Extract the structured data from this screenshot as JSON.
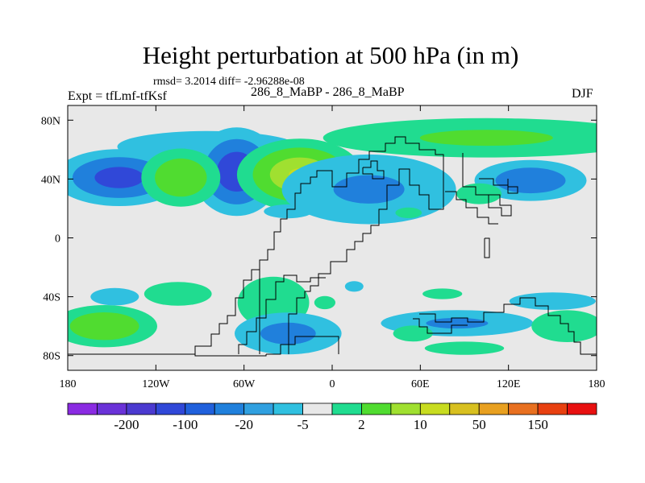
{
  "chart_data": {
    "type": "heatmap",
    "title": "Height perturbation at 500 hPa (in m)",
    "subtitle": "rmsd= 3.2014 diff= -2.96288e-08",
    "left_label": "Expt = tfLmf-tfKsf",
    "center_label": "286_8_MaBP - 286_8_MaBP",
    "right_label": "DJF",
    "xlim": [
      -180,
      180
    ],
    "ylim": [
      -90,
      90
    ],
    "x_ticks": [
      {
        "value": -180,
        "label": "180"
      },
      {
        "value": -120,
        "label": "120W"
      },
      {
        "value": -60,
        "label": "60W"
      },
      {
        "value": 0,
        "label": "0"
      },
      {
        "value": 60,
        "label": "60E"
      },
      {
        "value": 120,
        "label": "120E"
      },
      {
        "value": 180,
        "label": "180"
      }
    ],
    "y_ticks": [
      {
        "value": 80,
        "label": "80N"
      },
      {
        "value": 40,
        "label": "40N"
      },
      {
        "value": 0,
        "label": "0"
      },
      {
        "value": -40,
        "label": "40S"
      },
      {
        "value": -80,
        "label": "80S"
      }
    ],
    "colorbar": {
      "colors": [
        "#8a2be2",
        "#6a32d8",
        "#4b3ad0",
        "#3048d8",
        "#2060dc",
        "#2080dc",
        "#30a0e0",
        "#30c0e0",
        "#e8e8e8",
        "#20dc90",
        "#50dc30",
        "#a0e030",
        "#c8dc20",
        "#d8c020",
        "#e8a020",
        "#e87020",
        "#e84010",
        "#e81010"
      ],
      "labels": [
        {
          "after": 1,
          "text": "-200"
        },
        {
          "after": 3,
          "text": "-100"
        },
        {
          "after": 5,
          "text": "-20"
        },
        {
          "after": 7,
          "text": "-5"
        },
        {
          "after": 9,
          "text": "2"
        },
        {
          "after": 11,
          "text": "10"
        },
        {
          "after": 13,
          "text": "50"
        },
        {
          "after": 15,
          "text": "150"
        }
      ]
    },
    "anomalies": [
      {
        "lon": -145,
        "lat": 41,
        "sx": 23,
        "sy": 10,
        "amp": -13
      },
      {
        "lon": -85,
        "lat": 62,
        "sx": 52,
        "sy": 9,
        "amp": -4
      },
      {
        "lon": -65,
        "lat": 45,
        "sx": 15,
        "sy": 15,
        "amp": -15
      },
      {
        "lon": -103,
        "lat": 41,
        "sx": 15,
        "sy": 11,
        "amp": 10
      },
      {
        "lon": -22,
        "lat": 43,
        "sx": 21,
        "sy": 12,
        "amp": 16
      },
      {
        "lon": 25,
        "lat": 33,
        "sx": 40,
        "sy": 16,
        "amp": -6
      },
      {
        "lon": 105,
        "lat": 68,
        "sx": 75,
        "sy": 9,
        "amp": 6
      },
      {
        "lon": 135,
        "lat": 39,
        "sx": 22,
        "sy": 8,
        "amp": -9
      },
      {
        "lon": 100,
        "lat": 30,
        "sx": 13,
        "sy": 6,
        "amp": 4
      },
      {
        "lon": 52,
        "lat": 17,
        "sx": 10,
        "sy": 4,
        "amp": 3
      },
      {
        "lon": -30,
        "lat": 18,
        "sx": 14,
        "sy": 4,
        "amp": -4
      },
      {
        "lon": -155,
        "lat": -60,
        "sx": 20,
        "sy": 8,
        "amp": 10
      },
      {
        "lon": -105,
        "lat": -38,
        "sx": 17,
        "sy": 6,
        "amp": 5
      },
      {
        "lon": -148,
        "lat": -40,
        "sx": 14,
        "sy": 5,
        "amp": -4
      },
      {
        "lon": -40,
        "lat": -44,
        "sx": 18,
        "sy": 13,
        "amp": 5
      },
      {
        "lon": -5,
        "lat": -44,
        "sx": 8,
        "sy": 5,
        "amp": 3
      },
      {
        "lon": -30,
        "lat": -65,
        "sx": 23,
        "sy": 9,
        "amp": -7
      },
      {
        "lon": 15,
        "lat": -33,
        "sx": 7,
        "sy": 4,
        "amp": -3
      },
      {
        "lon": 75,
        "lat": -38,
        "sx": 15,
        "sy": 4,
        "amp": 3
      },
      {
        "lon": 150,
        "lat": -43,
        "sx": 25,
        "sy": 5,
        "amp": -4
      },
      {
        "lon": 85,
        "lat": -58,
        "sx": 35,
        "sy": 6,
        "amp": -6
      },
      {
        "lon": 160,
        "lat": -60,
        "sx": 18,
        "sy": 8,
        "amp": 5
      },
      {
        "lon": 55,
        "lat": -65,
        "sx": 15,
        "sy": 6,
        "amp": 3
      },
      {
        "lon": 90,
        "lat": -75,
        "sx": 30,
        "sy": 5,
        "amp": 3
      }
    ]
  }
}
